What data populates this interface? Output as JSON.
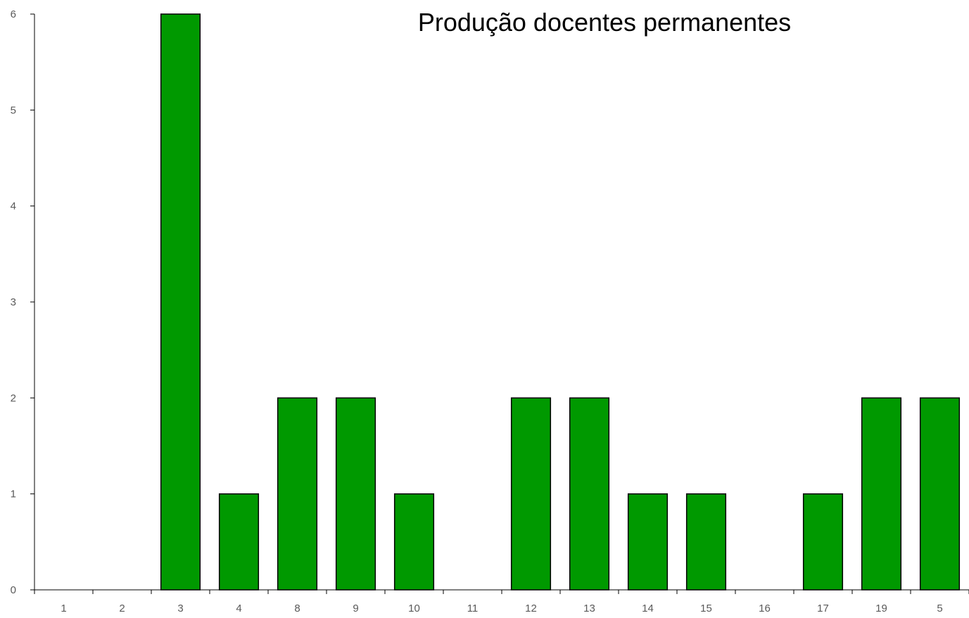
{
  "chart_data": {
    "type": "bar",
    "title": "Produção docentes permanentes",
    "xlabel": "",
    "ylabel": "",
    "categories": [
      "1",
      "2",
      "3",
      "4",
      "8",
      "9",
      "10",
      "11",
      "12",
      "13",
      "14",
      "15",
      "16",
      "17",
      "19",
      "5"
    ],
    "values": [
      0,
      0,
      6,
      1,
      2,
      2,
      1,
      0,
      2,
      2,
      1,
      1,
      0,
      1,
      2,
      2
    ],
    "ylim": [
      0,
      6
    ],
    "yticks": [
      "0",
      "1",
      "2",
      "3",
      "4",
      "5",
      "6"
    ],
    "grid": false,
    "legend": "none",
    "colors": {
      "bar_fill": "#009900",
      "bar_stroke": "#000000",
      "axis": "#000000",
      "tick_text": "#595959"
    }
  }
}
